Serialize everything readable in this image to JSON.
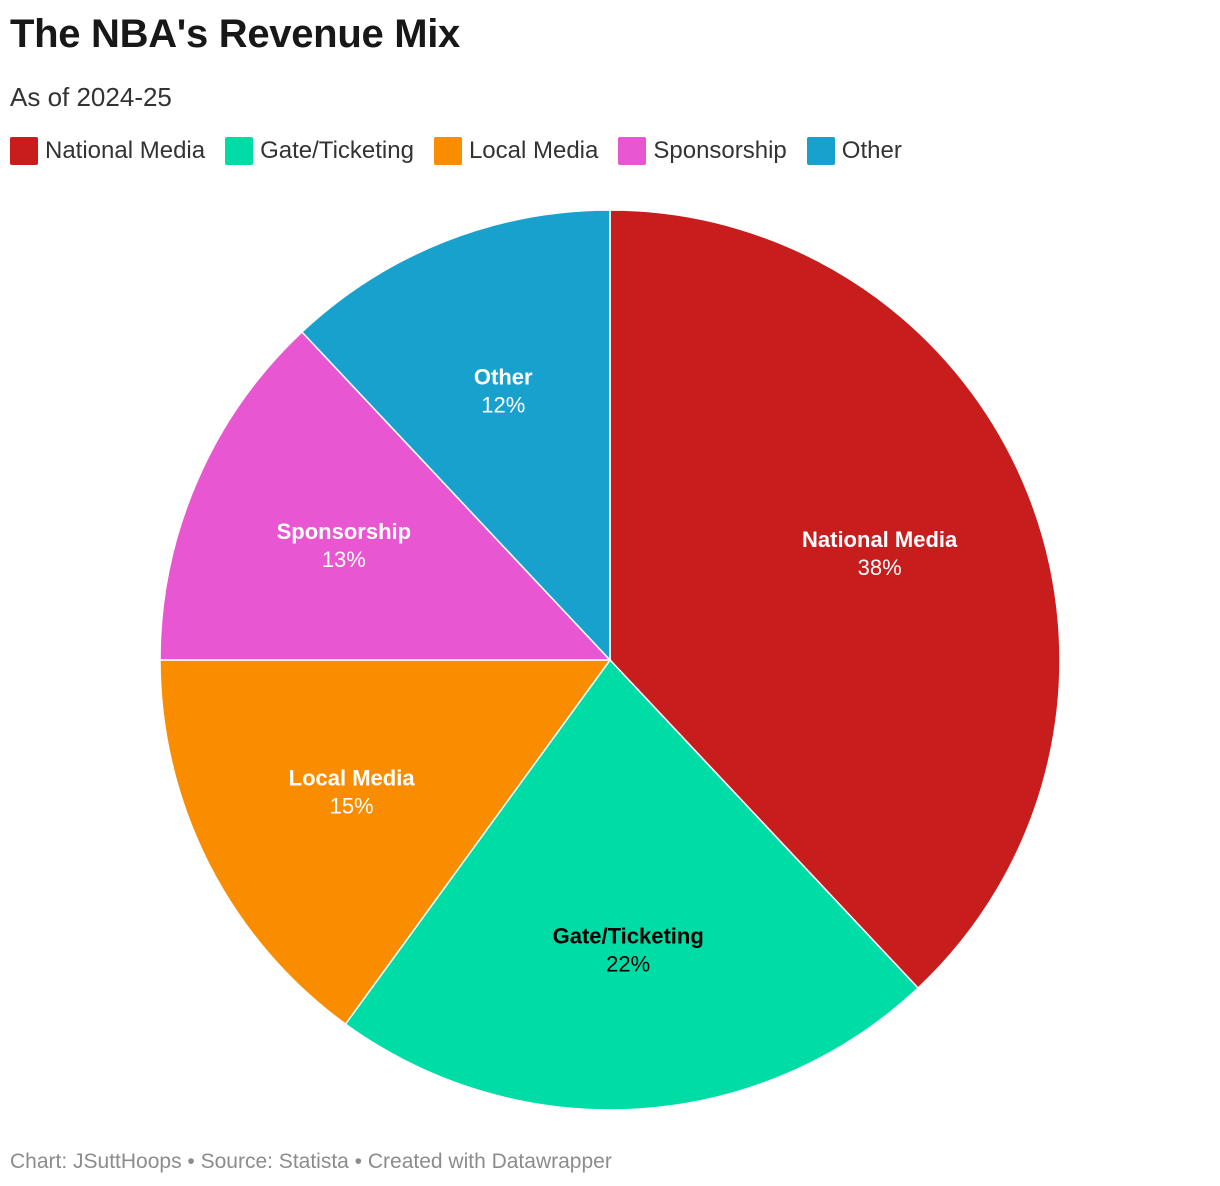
{
  "header": {
    "title": "The NBA's Revenue Mix",
    "subtitle": "As of 2024-25"
  },
  "legend": {
    "items": [
      {
        "label": "National Media",
        "color": "#c71e1d"
      },
      {
        "label": "Gate/Ticketing",
        "color": "#00dca6"
      },
      {
        "label": "Local Media",
        "color": "#fa8c00"
      },
      {
        "label": "Sponsorship",
        "color": "#e956d2"
      },
      {
        "label": "Other",
        "color": "#18a1cd"
      }
    ]
  },
  "chart_data": {
    "type": "pie",
    "title": "The NBA's Revenue Mix",
    "subtitle": "As of 2024-25",
    "categories": [
      "National Media",
      "Gate/Ticketing",
      "Local Media",
      "Sponsorship",
      "Other"
    ],
    "values": [
      38,
      22,
      15,
      13,
      12
    ],
    "value_labels": [
      "38%",
      "22%",
      "15%",
      "13%",
      "12%"
    ],
    "colors": [
      "#c71e1d",
      "#00dca6",
      "#fa8c00",
      "#e956d2",
      "#18a1cd"
    ],
    "label_text_colors": [
      "#ffffff",
      "#000000",
      "#ffffff",
      "#ffffff",
      "#ffffff"
    ],
    "start": "12 o'clock, clockwise",
    "legend_position": "top-left"
  },
  "footer": {
    "text": "Chart: JSuttHoops • Source: Statista • Created with Datawrapper"
  }
}
